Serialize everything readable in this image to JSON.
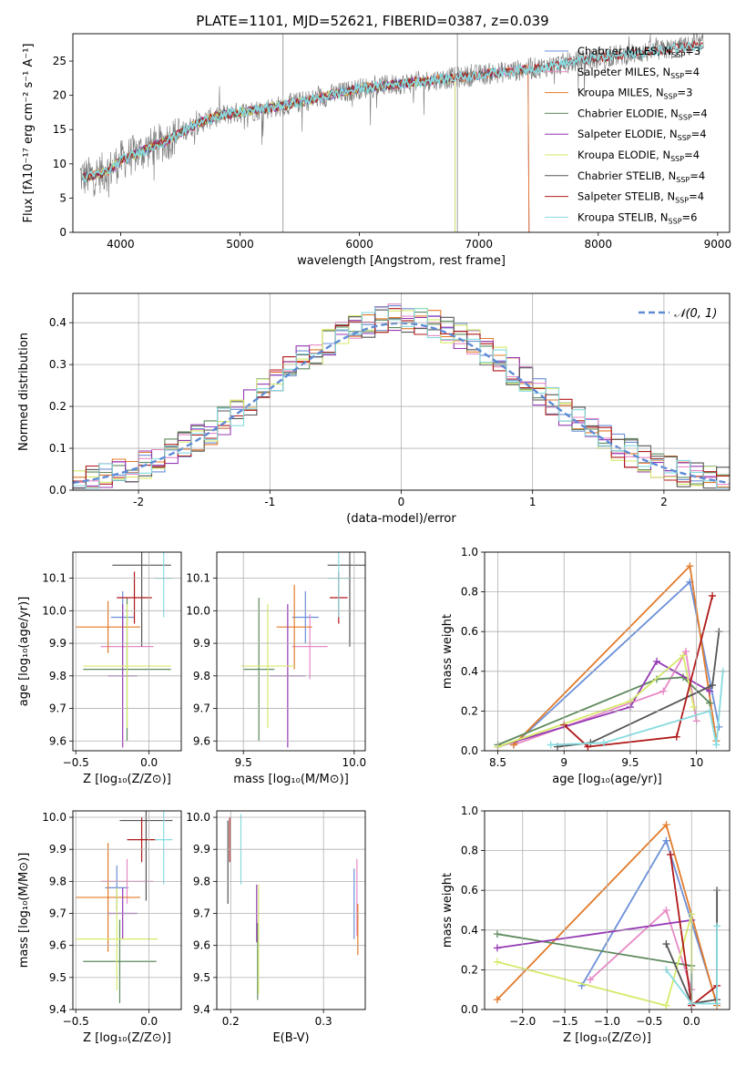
{
  "colors": {
    "cMILES": "#6a8fd8",
    "sMILES": "#e889c6",
    "kMILES": "#e27a2a",
    "cELODIE": "#5e8a5e",
    "sELODIE": "#9438b4",
    "kELODIE": "#d6ea6a",
    "cSTELIB": "#555555",
    "sSTELIB": "#b01818",
    "kSTELIB": "#86dbe0",
    "normal": "#5e8bd6",
    "grid": "#b0b0b0"
  },
  "chart_data": [
    {
      "id": "spectrum",
      "type": "line",
      "title": "PLATE=1101, MJD=52621, FIBERID=0387, z=0.039",
      "xlabel": "wavelength [Angstrom, rest frame]",
      "ylabel": "Flux [fλ10⁻¹⁷ erg cm⁻² s⁻¹ A⁻¹]",
      "xlim": [
        3600,
        9100
      ],
      "ylim": [
        0,
        29
      ],
      "xticks": [
        4000,
        5000,
        6000,
        7000,
        8000,
        9000
      ],
      "yticks": [
        0,
        5,
        10,
        15,
        20,
        25
      ],
      "grid": false,
      "legend_position": "top-right",
      "series": [
        {
          "name": "Chabrier MILES, N_SSP=3",
          "key": "cMILES"
        },
        {
          "name": "Salpeter MILES, N_SSP=4",
          "key": "sMILES"
        },
        {
          "name": "Kroupa MILES, N_SSP=3",
          "key": "kMILES"
        },
        {
          "name": "Chabrier ELODIE, N_SSP=4",
          "key": "cELODIE"
        },
        {
          "name": "Salpeter ELODIE, N_SSP=4",
          "key": "sELODIE"
        },
        {
          "name": "Kroupa ELODIE, N_SSP=4",
          "key": "kELODIE"
        },
        {
          "name": "Chabrier STELIB, N_SSP=4",
          "key": "cSTELIB"
        },
        {
          "name": "Salpeter STELIB, N_SSP=4",
          "key": "sSTELIB"
        },
        {
          "name": "Kroupa STELIB, N_SSP=6",
          "key": "kSTELIB"
        }
      ],
      "continuum": {
        "x": [
          3650,
          3700,
          3800,
          3900,
          4000,
          4200,
          4400,
          4600,
          4800,
          5000,
          5200,
          5500,
          6000,
          6500,
          7000,
          7500,
          8000,
          8500,
          8900
        ],
        "y": [
          8.5,
          8.0,
          8.5,
          9.0,
          10.5,
          12.0,
          13.5,
          15.5,
          17.0,
          17.5,
          18.0,
          19.0,
          21.0,
          22.0,
          23.0,
          24.0,
          25.5,
          26.5,
          27.5
        ]
      }
    },
    {
      "id": "residual",
      "type": "line",
      "xlabel": "(data-model)/error",
      "ylabel": "Normed distribution",
      "xlim": [
        -2.5,
        2.5
      ],
      "ylim": [
        0,
        0.47
      ],
      "xticks": [
        -2,
        -1,
        0,
        1,
        2
      ],
      "yticks": [
        0.0,
        0.1,
        0.2,
        0.3,
        0.4
      ],
      "grid": true,
      "legend_position": "top-right",
      "legend": "𝒩(0, 1)"
    },
    {
      "id": "age_vs_Z",
      "type": "scatter",
      "xlabel": "Z [log₁₀(Z/Z⊙)]",
      "ylabel": "age  [log₁₀(age/yr)]",
      "xlim": [
        -0.52,
        0.22
      ],
      "ylim": [
        9.57,
        10.18
      ],
      "xticks": [
        -0.5,
        0.0
      ],
      "xticklabels": [
        "−0.5",
        "0.0"
      ],
      "yticks": [
        9.6,
        9.7,
        9.8,
        9.9,
        10.0,
        10.1
      ],
      "grid": true,
      "points": [
        {
          "key": "cMILES",
          "x": -0.18,
          "y": 9.98,
          "xerr": 0.08,
          "yerr": 0.08
        },
        {
          "key": "sMILES",
          "x": -0.15,
          "y": 9.89,
          "xerr": 0.18,
          "yerr": 0.1
        },
        {
          "key": "kMILES",
          "x": -0.28,
          "y": 9.95,
          "xerr": 0.22,
          "yerr": 0.08
        },
        {
          "key": "cELODIE",
          "x": -0.15,
          "y": 9.82,
          "xerr": 0.3,
          "yerr": 0.22
        },
        {
          "key": "sELODIE",
          "x": -0.18,
          "y": 9.8,
          "xerr": 0.1,
          "yerr": 0.22
        },
        {
          "key": "kELODIE",
          "x": -0.15,
          "y": 9.83,
          "xerr": 0.3,
          "yerr": 0.19
        },
        {
          "key": "cSTELIB",
          "x": -0.05,
          "y": 10.14,
          "xerr": 0.2,
          "yerr": 0.25
        },
        {
          "key": "sSTELIB",
          "x": -0.1,
          "y": 10.04,
          "xerr": 0.12,
          "yerr": 0.08
        },
        {
          "key": "kSTELIB",
          "x": 0.1,
          "y": 10.1,
          "xerr": 0.06,
          "yerr": 0.12
        }
      ]
    },
    {
      "id": "age_vs_mass",
      "type": "scatter",
      "xlabel": "mass [log₁₀(M/M⊙)]",
      "ylabel": "",
      "xlim": [
        9.38,
        10.05
      ],
      "ylim": [
        9.57,
        10.18
      ],
      "xticks": [
        9.5,
        10.0
      ],
      "xticklabels": [
        "9.5",
        "10.0"
      ],
      "yticks": [
        9.6,
        9.7,
        9.8,
        9.9,
        10.0,
        10.1
      ],
      "grid": true,
      "points": [
        {
          "key": "cMILES",
          "x": 9.78,
          "y": 9.98,
          "xerr": 0.06,
          "yerr": 0.08
        },
        {
          "key": "sMILES",
          "x": 9.8,
          "y": 9.89,
          "xerr": 0.08,
          "yerr": 0.1
        },
        {
          "key": "kMILES",
          "x": 9.73,
          "y": 9.95,
          "xerr": 0.08,
          "yerr": 0.13
        },
        {
          "key": "cELODIE",
          "x": 9.57,
          "y": 9.82,
          "xerr": 0.07,
          "yerr": 0.22
        },
        {
          "key": "sELODIE",
          "x": 9.7,
          "y": 9.8,
          "xerr": 0.08,
          "yerr": 0.22
        },
        {
          "key": "kELODIE",
          "x": 9.61,
          "y": 9.83,
          "xerr": 0.12,
          "yerr": 0.19
        },
        {
          "key": "cSTELIB",
          "x": 9.98,
          "y": 10.14,
          "xerr": 0.1,
          "yerr": 0.25
        },
        {
          "key": "sSTELIB",
          "x": 9.93,
          "y": 10.04,
          "xerr": 0.04,
          "yerr": 0.08
        },
        {
          "key": "kSTELIB",
          "x": 9.93,
          "y": 10.1,
          "xerr": 0.05,
          "yerr": 0.12
        }
      ]
    },
    {
      "id": "weight_vs_age",
      "type": "line",
      "xlabel": "age  [log₁₀(age/yr)]",
      "ylabel": "mass weight",
      "xlim": [
        8.4,
        10.25
      ],
      "ylim": [
        0,
        1.0
      ],
      "xticks": [
        8.5,
        9.0,
        9.5,
        10.0
      ],
      "yticks": [
        0.0,
        0.2,
        0.4,
        0.6,
        0.8,
        1.0
      ],
      "grid": true,
      "series": [
        {
          "key": "cMILES",
          "x": [
            8.62,
            9.95,
            10.17
          ],
          "y": [
            0.03,
            0.85,
            0.12
          ]
        },
        {
          "key": "sMILES",
          "x": [
            8.62,
            9.75,
            9.92,
            10.0
          ],
          "y": [
            0.03,
            0.3,
            0.5,
            0.15
          ]
        },
        {
          "key": "kMILES",
          "x": [
            8.62,
            9.95,
            10.15
          ],
          "y": [
            0.03,
            0.93,
            0.05
          ]
        },
        {
          "key": "cELODIE",
          "x": [
            8.5,
            9.7,
            9.9,
            10.1
          ],
          "y": [
            0.03,
            0.36,
            0.37,
            0.24
          ]
        },
        {
          "key": "sELODIE",
          "x": [
            8.5,
            9.5,
            9.7,
            10.1
          ],
          "y": [
            0.02,
            0.22,
            0.45,
            0.3
          ]
        },
        {
          "key": "kELODIE",
          "x": [
            8.5,
            9.5,
            9.9,
            9.98
          ],
          "y": [
            0.02,
            0.25,
            0.48,
            0.22
          ]
        },
        {
          "key": "cSTELIB",
          "x": [
            8.95,
            9.2,
            10.12,
            10.17
          ],
          "y": [
            0.02,
            0.04,
            0.33,
            0.6
          ]
        },
        {
          "key": "sSTELIB",
          "x": [
            9.0,
            9.18,
            9.85,
            10.12
          ],
          "y": [
            0.13,
            0.02,
            0.07,
            0.78
          ]
        },
        {
          "key": "kSTELIB",
          "x": [
            8.9,
            9.3,
            10.1,
            10.15,
            10.2
          ],
          "y": [
            0.03,
            0.04,
            0.2,
            0.03,
            0.4
          ]
        }
      ]
    },
    {
      "id": "mass_vs_Z",
      "type": "scatter",
      "xlabel": "Z [log₁₀(Z/Z⊙)]",
      "ylabel": "mass [log₁₀(M/M⊙)]",
      "xlim": [
        -0.52,
        0.22
      ],
      "ylim": [
        9.4,
        10.02
      ],
      "xticks": [
        -0.5,
        0.0
      ],
      "xticklabels": [
        "−0.5",
        "0.0"
      ],
      "yticks": [
        9.4,
        9.5,
        9.6,
        9.7,
        9.8,
        9.9,
        10.0
      ],
      "grid": true,
      "points": [
        {
          "key": "cMILES",
          "x": -0.22,
          "y": 9.78,
          "xerr": 0.08,
          "yerr": 0.07
        },
        {
          "key": "sMILES",
          "x": -0.15,
          "y": 9.8,
          "xerr": 0.18,
          "yerr": 0.07
        },
        {
          "key": "kMILES",
          "x": -0.28,
          "y": 9.75,
          "xerr": 0.22,
          "yerr": 0.17
        },
        {
          "key": "cELODIE",
          "x": -0.2,
          "y": 9.55,
          "xerr": 0.25,
          "yerr": 0.13
        },
        {
          "key": "sELODIE",
          "x": -0.18,
          "y": 9.7,
          "xerr": 0.1,
          "yerr": 0.08
        },
        {
          "key": "kELODIE",
          "x": -0.22,
          "y": 9.62,
          "xerr": 0.28,
          "yerr": 0.16
        },
        {
          "key": "cSTELIB",
          "x": -0.02,
          "y": 9.99,
          "xerr": 0.18,
          "yerr": 0.25
        },
        {
          "key": "sSTELIB",
          "x": -0.05,
          "y": 9.93,
          "xerr": 0.1,
          "yerr": 0.07
        },
        {
          "key": "kSTELIB",
          "x": 0.1,
          "y": 9.93,
          "xerr": 0.06,
          "yerr": 0.14
        }
      ]
    },
    {
      "id": "mass_vs_ebv",
      "type": "scatter",
      "xlabel": "E(B-V)",
      "ylabel": "",
      "xlim": [
        0.185,
        0.345
      ],
      "ylim": [
        9.4,
        10.02
      ],
      "xticks": [
        0.2,
        0.3
      ],
      "xticklabels": [
        "0.2",
        "0.3"
      ],
      "yticks": [
        9.4,
        9.5,
        9.6,
        9.7,
        9.8,
        9.9,
        10.0
      ],
      "grid": true,
      "points": [
        {
          "key": "cMILES",
          "x": 0.333,
          "y": 9.73,
          "xerr": 0,
          "yerr": 0.11
        },
        {
          "key": "sMILES",
          "x": 0.336,
          "y": 9.75,
          "xerr": 0,
          "yerr": 0.12
        },
        {
          "key": "kMILES",
          "x": 0.337,
          "y": 9.65,
          "xerr": 0,
          "yerr": 0.08
        },
        {
          "key": "cELODIE",
          "x": 0.229,
          "y": 9.55,
          "xerr": 0,
          "yerr": 0.12
        },
        {
          "key": "sELODIE",
          "x": 0.228,
          "y": 9.7,
          "xerr": 0,
          "yerr": 0.09
        },
        {
          "key": "kELODIE",
          "x": 0.23,
          "y": 9.62,
          "xerr": 0,
          "yerr": 0.17
        },
        {
          "key": "cSTELIB",
          "x": 0.197,
          "y": 9.86,
          "xerr": 0,
          "yerr": 0.13
        },
        {
          "key": "sSTELIB",
          "x": 0.199,
          "y": 9.93,
          "xerr": 0,
          "yerr": 0.07
        },
        {
          "key": "kSTELIB",
          "x": 0.211,
          "y": 9.9,
          "xerr": 0,
          "yerr": 0.11
        }
      ]
    },
    {
      "id": "weight_vs_Z",
      "type": "line",
      "xlabel": "Z [log₁₀(Z/Z⊙)]",
      "ylabel": "mass weight",
      "xlim": [
        -2.45,
        0.45
      ],
      "ylim": [
        0,
        1.0
      ],
      "xticks": [
        -2.0,
        -1.5,
        -1.0,
        -0.5,
        0.0
      ],
      "xticklabels": [
        "−2.0",
        "−1.5",
        "−1.0",
        "−0.5",
        "0.0"
      ],
      "yticks": [
        0.0,
        0.2,
        0.4,
        0.6,
        0.8,
        1.0
      ],
      "grid": true,
      "series": [
        {
          "key": "cMILES",
          "x": [
            -1.3,
            -0.3,
            0.3
          ],
          "y": [
            0.12,
            0.85,
            0.03
          ]
        },
        {
          "key": "sMILES",
          "x": [
            -1.2,
            -0.3,
            0.0
          ],
          "y": [
            0.15,
            0.5,
            0.1
          ]
        },
        {
          "key": "kMILES",
          "x": [
            -2.3,
            -0.3,
            0.3
          ],
          "y": [
            0.05,
            0.93,
            0.02
          ]
        },
        {
          "key": "cELODIE",
          "x": [
            -2.3,
            0.0,
            0.0
          ],
          "y": [
            0.38,
            0.22,
            0.02
          ]
        },
        {
          "key": "sELODIE",
          "x": [
            -2.3,
            0.0
          ],
          "y": [
            0.31,
            0.45
          ]
        },
        {
          "key": "kELODIE",
          "x": [
            -2.3,
            -0.3,
            0.0,
            0.0
          ],
          "y": [
            0.24,
            0.02,
            0.48,
            0.2
          ]
        },
        {
          "key": "cSTELIB",
          "x": [
            -0.3,
            0.0,
            0.3,
            0.3
          ],
          "y": [
            0.33,
            0.03,
            0.05,
            0.6
          ]
        },
        {
          "key": "sSTELIB",
          "x": [
            -0.25,
            0.0,
            0.3
          ],
          "y": [
            0.78,
            0.02,
            0.12
          ]
        },
        {
          "key": "kSTELIB",
          "x": [
            -0.3,
            0.0,
            0.3,
            0.3
          ],
          "y": [
            0.2,
            0.03,
            0.03,
            0.42
          ]
        }
      ]
    }
  ]
}
